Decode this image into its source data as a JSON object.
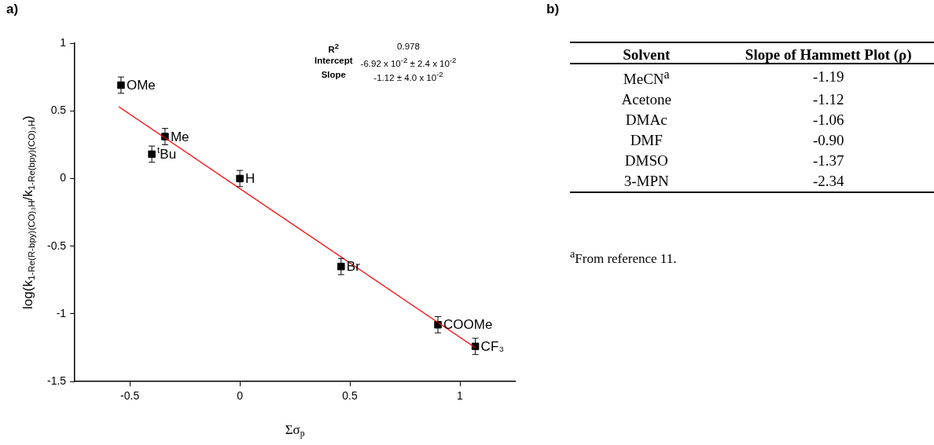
{
  "chart_data": [
    {
      "type": "scatter",
      "title": "a)",
      "xlabel": "Σσ$_{p}$",
      "ylabel": "log(k$_{1-Re(R-bpy)(CO)₃H}$/k$_{1-Re(bpy)(CO)₃H}$)",
      "xlim": [
        -0.75,
        1.25
      ],
      "xticks": [
        -0.5,
        0,
        0.5,
        1
      ],
      "ylim": [
        -1.5,
        1
      ],
      "yticks": [
        -1.5,
        -1,
        -0.5,
        0,
        0.5,
        1
      ],
      "grid": false,
      "legend": false,
      "series": [
        {
          "type": "scatter",
          "marker": "square",
          "color": "#000000",
          "x": [
            -0.54,
            -0.34,
            -0.4,
            0,
            0.46,
            0.9,
            1.07
          ],
          "values": [
            0.69,
            0.31,
            0.18,
            0,
            -0.65,
            -1.08,
            -1.24
          ],
          "errors": [
            0.06,
            0.06,
            0.06,
            0.06,
            0.06,
            0.06,
            0.06
          ]
        },
        {
          "type": "line",
          "color": "#ff0000",
          "x": [
            -0.55,
            1.07
          ],
          "values": [
            0.53,
            -1.25
          ]
        }
      ],
      "annotations": [
        {
          "text": "OMe",
          "x": -0.54,
          "y": 0.69
        },
        {
          "text": "Me",
          "x": -0.34,
          "y": 0.31
        },
        {
          "text": "$^{t}$Bu",
          "x": -0.4,
          "y": 0.18
        },
        {
          "text": "H",
          "x": 0,
          "y": 0
        },
        {
          "text": "Br",
          "x": 0.46,
          "y": -0.65
        },
        {
          "text": "COOMe",
          "x": 0.9,
          "y": -1.08
        },
        {
          "text": "CF₃",
          "x": 1.07,
          "y": -1.24
        },
        "R$^{2}$",
        "0.978",
        "Intercept",
        "-6.92 x 10$^{-2}$ ± 2.4 x 10$^{-2}$",
        "Slope",
        "-1.12 ± 4.0 x 10$^{-2}$"
      ]
    },
    {
      "type": "other",
      "title": "b)",
      "xlabel": "Solvent",
      "ylabel": "Slope of Hammett Plot (ρ)",
      "categories": [
        "MeCN$^{a}$",
        "Acetone",
        "DMAc",
        "DMF",
        "DMSO",
        "3-MPN"
      ],
      "value_labels": [
        "-1.19",
        "-1.12",
        "-1.06",
        "-0.90",
        "-1.37",
        "-2.34"
      ],
      "annotations": [
        "$^{a}$From reference 11."
      ]
    }
  ]
}
